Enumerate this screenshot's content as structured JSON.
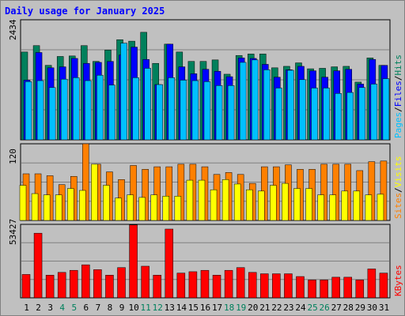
{
  "colors": {
    "background": "#c0c0c0",
    "title": "#0000ff",
    "hits": "#00805c",
    "files": "#0000ff",
    "pages": "#00c0ff",
    "visits": "#ff8000",
    "sites": "#ffff00",
    "kbytes": "#ff0000",
    "weekend_day": "#00805c",
    "weekday": "#000000"
  },
  "chart_data": {
    "type": "bar",
    "title": "Daily usage for January 2025",
    "categories": [
      "1",
      "2",
      "3",
      "4",
      "5",
      "6",
      "7",
      "8",
      "9",
      "10",
      "11",
      "12",
      "13",
      "14",
      "15",
      "16",
      "17",
      "18",
      "19",
      "20",
      "21",
      "22",
      "23",
      "24",
      "25",
      "26",
      "27",
      "28",
      "29",
      "30",
      "31"
    ],
    "weekend_days": [
      "4",
      "5",
      "11",
      "12",
      "18",
      "19",
      "25",
      "26"
    ],
    "panels": [
      {
        "id": "hits",
        "max_label": "2434",
        "ymax": 2434,
        "legend": [
          "Pages",
          "/",
          "Files",
          "/",
          "Hits"
        ],
        "legend_colors": [
          "#00c0ff",
          "#000000",
          "#0000ff",
          "#000000",
          "#00805c"
        ],
        "series": [
          {
            "name": "Hits",
            "color": "#00805c",
            "values": [
              1780,
              1910,
              1510,
              1690,
              1700,
              1910,
              1590,
              1820,
              2030,
              2000,
              2180,
              1550,
              1940,
              1780,
              1590,
              1590,
              1620,
              1330,
              1710,
              1740,
              1740,
              1460,
              1490,
              1560,
              1440,
              1450,
              1480,
              1490,
              1170,
              1660,
              1510
            ]
          },
          {
            "name": "Files",
            "color": "#0000ff",
            "values": [
              1210,
              1770,
              1460,
              1480,
              1650,
              1550,
              1570,
              1590,
              1720,
              1880,
              1630,
              1120,
              1940,
              1480,
              1340,
              1430,
              1390,
              1280,
              1660,
              1650,
              1530,
              1270,
              1420,
              1490,
              1400,
              1270,
              1400,
              1430,
              1130,
              1630,
              1510
            ]
          },
          {
            "name": "Pages",
            "color": "#00c0ff",
            "values": [
              1180,
              1200,
              1060,
              1230,
              1260,
              1200,
              1310,
              1110,
              1960,
              1260,
              1450,
              1120,
              1260,
              1210,
              1200,
              1180,
              1100,
              1100,
              1570,
              1620,
              1420,
              1050,
              1410,
              1220,
              1050,
              1050,
              940,
              960,
              1060,
              1130,
              1240
            ]
          }
        ]
      },
      {
        "id": "visits",
        "max_label": "120",
        "ymax": 120,
        "legend": [
          "Sites",
          "/",
          "Visits"
        ],
        "legend_colors": [
          "#ff8000",
          "#000000",
          "#ffff00"
        ],
        "series": [
          {
            "name": "Visits",
            "color": "#ff8000",
            "values": [
              73,
              73,
              70,
              56,
              69,
              120,
              88,
              76,
              64,
              86,
              80,
              84,
              84,
              88,
              88,
              84,
              72,
              75,
              72,
              58,
              84,
              84,
              87,
              80,
              80,
              88,
              88,
              88,
              78,
              92,
              93
            ]
          },
          {
            "name": "Sites",
            "color": "#ffff00",
            "values": [
              55,
              42,
              40,
              40,
              50,
              47,
              88,
              55,
              35,
              40,
              36,
              40,
              38,
              38,
              63,
              63,
              48,
              64,
              57,
              48,
              46,
              55,
              58,
              50,
              50,
              40,
              40,
              46,
              46,
              40,
              41
            ]
          }
        ]
      },
      {
        "id": "kbytes",
        "max_label": "53427",
        "ymax": 53427,
        "legend": [
          "KBytes"
        ],
        "legend_colors": [
          "#ff0000"
        ],
        "series": [
          {
            "name": "KBytes",
            "color": "#ff0000",
            "values": [
              17000,
              47000,
              16500,
              18500,
              20000,
              24000,
              20500,
              16500,
              22000,
              53000,
              23000,
              16500,
              50000,
              18000,
              19000,
              20000,
              16500,
              20000,
              22000,
              18500,
              17500,
              17500,
              17500,
              15500,
              13000,
              13000,
              15000,
              15000,
              13000,
              21000,
              18000
            ]
          }
        ]
      }
    ]
  }
}
